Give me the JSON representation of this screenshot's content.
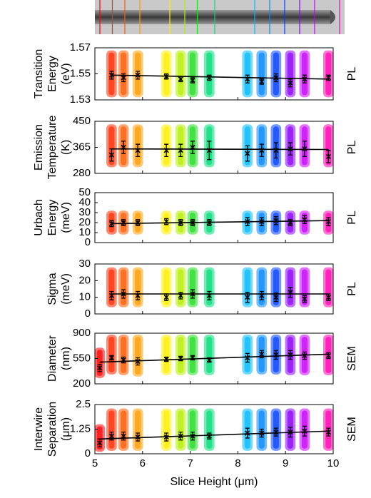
{
  "chart_data": [
    {
      "type": "scatter",
      "ylabel": [
        "Transition",
        "Energy",
        "(eV)"
      ],
      "method": "PL",
      "x": [
        5.1,
        5.35,
        5.6,
        5.9,
        6.5,
        6.8,
        7.05,
        7.4,
        8.2,
        8.5,
        8.8,
        9.1,
        9.4,
        9.9
      ],
      "colors": [
        "#ff0000",
        "#ff2a00",
        "#ff5a00",
        "#ff9a00",
        "#ffee00",
        "#b4ee00",
        "#22dd22",
        "#00dd77",
        "#00bbff",
        "#0088ff",
        "#0040ff",
        "#8a00ff",
        "#c800ff",
        "#ff00b0"
      ],
      "mean": [
        null,
        1.549,
        1.547,
        1.549,
        1.548,
        1.546,
        1.545,
        1.547,
        1.546,
        1.544,
        1.547,
        1.543,
        1.546,
        1.547
      ],
      "error": [
        null,
        0.003,
        0.003,
        0.003,
        0.002,
        0.002,
        0.002,
        0.002,
        0.003,
        0.002,
        0.003,
        0.003,
        0.003,
        0.002
      ],
      "min": [
        null,
        1.532,
        1.532,
        1.532,
        1.532,
        1.532,
        1.532,
        1.532,
        1.532,
        1.532,
        1.532,
        1.532,
        1.532,
        1.532
      ],
      "max": [
        null,
        1.568,
        1.568,
        1.568,
        1.568,
        1.568,
        1.568,
        1.568,
        1.568,
        1.568,
        1.568,
        1.568,
        1.568,
        1.568
      ],
      "fit": {
        "x": [
          5.35,
          9.9
        ],
        "y": [
          1.549,
          1.546
        ]
      },
      "xlim": [
        5,
        10
      ],
      "xticks": [
        5,
        6,
        7,
        8,
        9,
        10
      ],
      "ylim": [
        1.53,
        1.57
      ],
      "yticks": [
        1.53,
        1.55,
        1.57
      ]
    },
    {
      "type": "scatter",
      "ylabel": [
        "Emission",
        "Temperature",
        "(K)"
      ],
      "method": "PL",
      "x": [
        5.1,
        5.35,
        5.6,
        5.9,
        6.5,
        6.8,
        7.05,
        7.4,
        8.2,
        8.5,
        8.8,
        9.1,
        9.4,
        9.9
      ],
      "colors": [
        "#ff0000",
        "#ff2a00",
        "#ff5a00",
        "#ff9a00",
        "#ffee00",
        "#b4ee00",
        "#22dd22",
        "#00dd77",
        "#00bbff",
        "#0088ff",
        "#0040ff",
        "#8a00ff",
        "#c800ff",
        "#ff00b0"
      ],
      "mean": [
        null,
        340,
        365,
        355,
        355,
        355,
        365,
        355,
        345,
        355,
        355,
        360,
        360,
        335
      ],
      "error": [
        null,
        20,
        20,
        20,
        20,
        20,
        20,
        30,
        25,
        20,
        25,
        20,
        25,
        20
      ],
      "min": [
        null,
        300,
        300,
        300,
        300,
        300,
        300,
        300,
        300,
        300,
        300,
        300,
        300,
        300
      ],
      "max": [
        null,
        440,
        440,
        440,
        440,
        440,
        440,
        440,
        440,
        440,
        440,
        440,
        440,
        440
      ],
      "fit": {
        "x": [
          5.35,
          9.9
        ],
        "y": [
          360,
          358
        ]
      },
      "xlim": [
        5,
        10
      ],
      "xticks": [
        5,
        6,
        7,
        8,
        9,
        10
      ],
      "ylim": [
        280,
        450
      ],
      "yticks": [
        280,
        365,
        450
      ]
    },
    {
      "type": "scatter",
      "ylabel": [
        "Urbach",
        "Energy",
        "(meV)"
      ],
      "method": "PL",
      "x": [
        5.1,
        5.35,
        5.6,
        5.9,
        6.5,
        6.8,
        7.05,
        7.4,
        8.2,
        8.5,
        8.8,
        9.1,
        9.4,
        9.9
      ],
      "colors": [
        "#ff0000",
        "#ff2a00",
        "#ff5a00",
        "#ff9a00",
        "#ffee00",
        "#b4ee00",
        "#22dd22",
        "#00dd77",
        "#00bbff",
        "#0088ff",
        "#0040ff",
        "#8a00ff",
        "#c800ff",
        "#ff00b0"
      ],
      "mean": [
        null,
        19,
        20,
        20,
        21,
        20,
        20,
        20,
        21,
        21,
        22,
        20,
        23,
        21
      ],
      "error": [
        null,
        3,
        3,
        3,
        3,
        3,
        3,
        3,
        4,
        4,
        4,
        3,
        4,
        4
      ],
      "min": [
        null,
        8,
        8,
        8,
        8,
        8,
        8,
        8,
        8,
        8,
        8,
        8,
        8,
        8
      ],
      "max": [
        null,
        32,
        32,
        32,
        32,
        32,
        32,
        32,
        32,
        32,
        32,
        32,
        32,
        32
      ],
      "fit": {
        "x": [
          5.35,
          9.9
        ],
        "y": [
          19,
          22
        ]
      },
      "xlim": [
        5,
        10
      ],
      "xticks": [
        5,
        6,
        7,
        8,
        9,
        10
      ],
      "ylim": [
        0,
        50
      ],
      "yticks": [
        0,
        10,
        20,
        30,
        40,
        50
      ]
    },
    {
      "type": "scatter",
      "ylabel": [
        "Sigma",
        "(meV)"
      ],
      "method": "PL",
      "x": [
        5.1,
        5.35,
        5.6,
        5.9,
        6.5,
        6.8,
        7.05,
        7.4,
        8.2,
        8.5,
        8.8,
        9.1,
        9.4,
        9.9
      ],
      "colors": [
        "#ff0000",
        "#ff2a00",
        "#ff5a00",
        "#ff9a00",
        "#ffee00",
        "#b4ee00",
        "#22dd22",
        "#00dd77",
        "#00bbff",
        "#0088ff",
        "#0040ff",
        "#8a00ff",
        "#c800ff",
        "#ff00b0"
      ],
      "mean": [
        null,
        11,
        12,
        11,
        10,
        11,
        12,
        11,
        10,
        11,
        10,
        13,
        9,
        10
      ],
      "error": [
        null,
        2.5,
        2.5,
        2.5,
        2,
        2,
        2.5,
        2.5,
        3,
        2.5,
        2.5,
        3,
        2,
        2
      ],
      "min": [
        null,
        4,
        4,
        4,
        4,
        4,
        4,
        4,
        4,
        4,
        4,
        4,
        4,
        4
      ],
      "max": [
        null,
        28,
        28,
        28,
        28,
        28,
        28,
        28,
        28,
        28,
        28,
        28,
        28,
        28
      ],
      "fit": {
        "x": [
          5.35,
          9.9
        ],
        "y": [
          12,
          12
        ]
      },
      "xlim": [
        5,
        10
      ],
      "xticks": [
        5,
        6,
        7,
        8,
        9,
        10
      ],
      "ylim": [
        0,
        30
      ],
      "yticks": [
        0,
        10,
        20,
        30
      ]
    },
    {
      "type": "scatter",
      "ylabel": [
        "Diameter",
        "(nm)"
      ],
      "method": "SEM",
      "x": [
        5.1,
        5.35,
        5.6,
        5.9,
        6.5,
        6.8,
        7.05,
        7.4,
        8.2,
        8.5,
        8.8,
        9.1,
        9.4,
        9.9
      ],
      "colors": [
        "#ff0000",
        "#ff2a00",
        "#ff5a00",
        "#ff9a00",
        "#ffee00",
        "#b4ee00",
        "#22dd22",
        "#00dd77",
        "#00bbff",
        "#0088ff",
        "#0040ff",
        "#8a00ff",
        "#c800ff",
        "#ff00b0"
      ],
      "mean": [
        420,
        560,
        530,
        510,
        540,
        550,
        560,
        530,
        560,
        610,
        600,
        600,
        590,
        590
      ],
      "error": [
        50,
        30,
        40,
        50,
        30,
        30,
        30,
        30,
        60,
        50,
        60,
        60,
        50,
        40
      ],
      "min": [
        280,
        330,
        320,
        300,
        320,
        320,
        320,
        320,
        330,
        330,
        330,
        320,
        320,
        320
      ],
      "max": [
        700,
        880,
        880,
        880,
        880,
        880,
        880,
        880,
        880,
        880,
        880,
        880,
        880,
        880
      ],
      "fit": {
        "x": [
          5.1,
          9.9
        ],
        "y": [
          500,
          610
        ]
      },
      "xlim": [
        5,
        10
      ],
      "xticks": [
        5,
        6,
        7,
        8,
        9,
        10
      ],
      "ylim": [
        200,
        900
      ],
      "yticks": [
        200,
        550,
        900
      ]
    },
    {
      "type": "scatter",
      "ylabel": [
        "Interwire",
        "Separation",
        "(μm)"
      ],
      "method": "SEM",
      "xlabel": "Slice Height (μm)",
      "x": [
        5.1,
        5.35,
        5.6,
        5.9,
        6.5,
        6.8,
        7.05,
        7.4,
        8.2,
        8.5,
        8.8,
        9.1,
        9.4,
        9.9
      ],
      "colors": [
        "#ff0000",
        "#ff2a00",
        "#ff5a00",
        "#ff9a00",
        "#ffee00",
        "#b4ee00",
        "#22dd22",
        "#00dd77",
        "#00bbff",
        "#0088ff",
        "#0040ff",
        "#8a00ff",
        "#c800ff",
        "#ff00b0"
      ],
      "mean": [
        0.55,
        0.9,
        0.9,
        0.85,
        0.85,
        0.9,
        0.9,
        0.9,
        1.05,
        1.05,
        1.1,
        1.1,
        1.15,
        1.1
      ],
      "error": [
        0.2,
        0.2,
        0.2,
        0.2,
        0.2,
        0.2,
        0.2,
        0.15,
        0.25,
        0.2,
        0.2,
        0.25,
        0.25,
        0.2
      ],
      "min": [
        0.1,
        0.15,
        0.15,
        0.15,
        0.15,
        0.15,
        0.15,
        0.15,
        0.15,
        0.15,
        0.15,
        0.15,
        0.15,
        0.15
      ],
      "max": [
        1.5,
        2.3,
        2.3,
        2.3,
        2.3,
        2.3,
        2.3,
        2.3,
        2.3,
        2.3,
        2.3,
        2.3,
        2.3,
        2.3
      ],
      "fit": {
        "x": [
          5.1,
          9.9
        ],
        "y": [
          0.75,
          1.15
        ]
      },
      "xlim": [
        5,
        10
      ],
      "xticks": [
        5,
        6,
        7,
        8,
        9,
        10
      ],
      "ylim": [
        0,
        2.5
      ],
      "yticks": [
        0,
        1.25,
        2.5
      ]
    }
  ]
}
